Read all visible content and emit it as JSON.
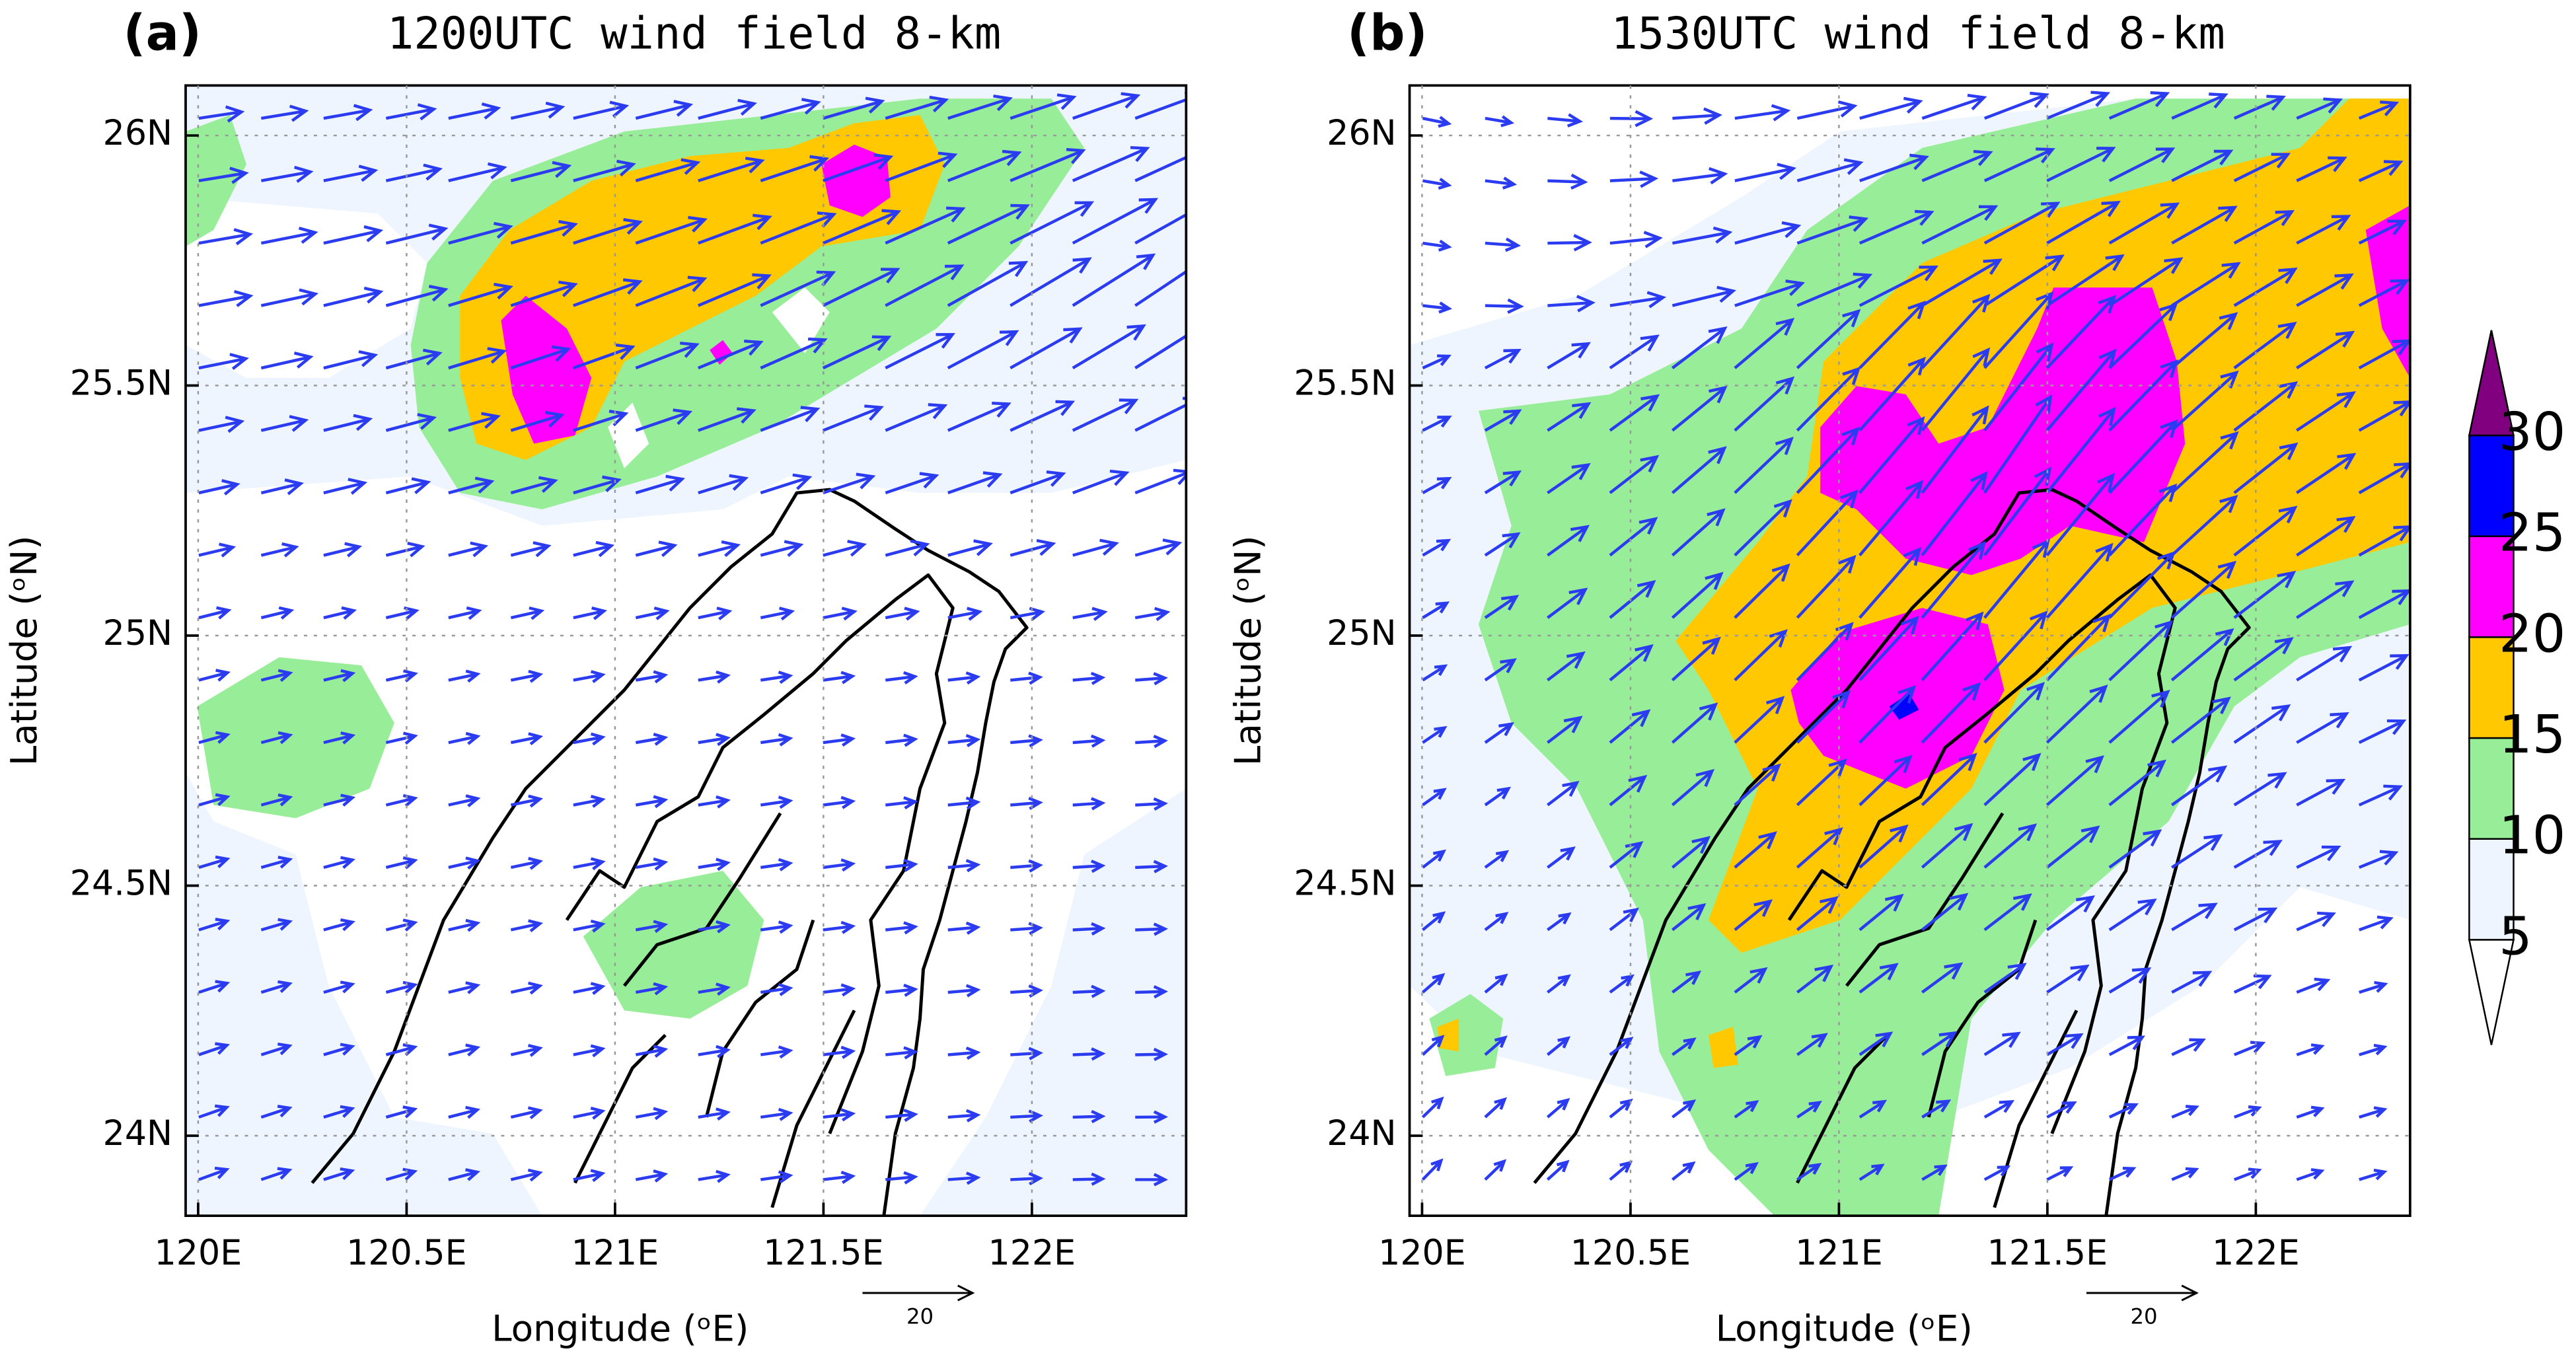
{
  "chart_data": [
    {
      "type": "wind-map",
      "panel_label": "(a)",
      "title": "1200UTC wind field 8-km",
      "x_label": "Longitude (ᵒE)",
      "y_label": "Latitude (ᵒN)",
      "xlim": [
        119.97,
        122.37
      ],
      "ylim": [
        23.84,
        26.1
      ],
      "xticks": [
        {
          "value": 120,
          "label": "120E"
        },
        {
          "value": 120.5,
          "label": "120.5E"
        },
        {
          "value": 121,
          "label": "121E"
        },
        {
          "value": 121.5,
          "label": "121.5E"
        },
        {
          "value": 122,
          "label": "122E"
        }
      ],
      "yticks": [
        {
          "value": 24,
          "label": "24N"
        },
        {
          "value": 24.5,
          "label": "24.5N"
        },
        {
          "value": 25,
          "label": "25N"
        },
        {
          "value": 25.5,
          "label": "25.5N"
        },
        {
          "value": 26,
          "label": "26N"
        }
      ],
      "grid": true,
      "reference_vector": 20,
      "vector_color": "#2b3cf0"
    },
    {
      "type": "wind-map",
      "panel_label": "(b)",
      "title": "1530UTC wind field 8-km",
      "x_label": "Longitude (ᵒE)",
      "y_label": "Latitude (ᵒN)",
      "xlim": [
        119.97,
        122.37
      ],
      "ylim": [
        23.84,
        26.1
      ],
      "xticks": [
        {
          "value": 120,
          "label": "120E"
        },
        {
          "value": 120.5,
          "label": "120.5E"
        },
        {
          "value": 121,
          "label": "121E"
        },
        {
          "value": 121.5,
          "label": "121.5E"
        },
        {
          "value": 122,
          "label": "122E"
        }
      ],
      "yticks": [
        {
          "value": 24,
          "label": "24N"
        },
        {
          "value": 24.5,
          "label": "24.5N"
        },
        {
          "value": 25,
          "label": "25N"
        },
        {
          "value": 25.5,
          "label": "25.5N"
        },
        {
          "value": 26,
          "label": "26N"
        }
      ],
      "grid": true,
      "reference_vector": 20,
      "vector_color": "#2b3cf0",
      "colorbar": {
        "levels": [
          5,
          10,
          15,
          20,
          25,
          30
        ],
        "colors": [
          "#ffffff",
          "#eef5ff",
          "#98ee98",
          "#ffc800",
          "#ff00ff",
          "#0000ff",
          "#800080"
        ]
      }
    }
  ]
}
